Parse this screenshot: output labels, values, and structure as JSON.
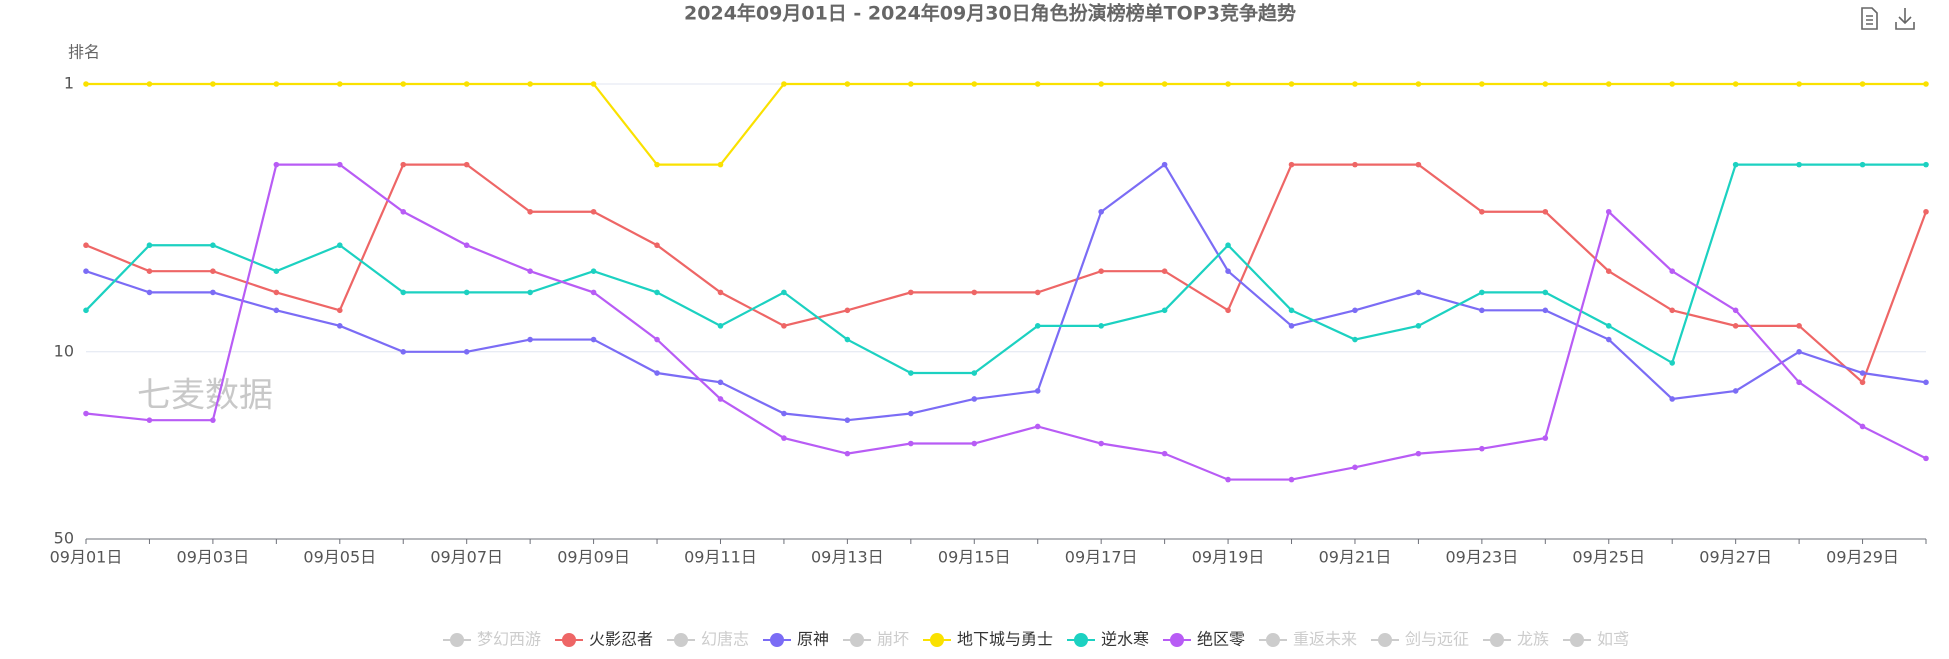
{
  "chart_data": {
    "type": "line",
    "title": "2024年09月01日 - 2024年09月30日角色扮演榜榜单TOP3竞争趋势",
    "y_axis_label": "排名",
    "watermark": "七麦数据",
    "categories": [
      "09月01日",
      null,
      "09月03日",
      null,
      "09月05日",
      null,
      "09月07日",
      null,
      "09月09日",
      null,
      "09月11日",
      null,
      "09月13日",
      null,
      "09月15日",
      null,
      "09月17日",
      null,
      "09月19日",
      null,
      "09月21日",
      null,
      "09月23日",
      null,
      "09月25日",
      null,
      "09月27日",
      null,
      "09月29日",
      null
    ],
    "ylim": [
      1,
      50
    ],
    "yticks": [
      1,
      10,
      50
    ],
    "log_scale": true,
    "y_inverted": true,
    "grid": true,
    "legend_position": "bottom",
    "series": [
      {
        "name": "梦幻西游",
        "color": "#cccccc",
        "visible": false
      },
      {
        "name": "火影忍者",
        "color": "#ee6666",
        "visible": true,
        "values": [
          4,
          5,
          5,
          6,
          7,
          2,
          2,
          3,
          3,
          4,
          6,
          8,
          7,
          6,
          6,
          6,
          5,
          5,
          7,
          2,
          2,
          2,
          3,
          3,
          5,
          7,
          8,
          8,
          13,
          3
        ]
      },
      {
        "name": "幻唐志",
        "color": "#cccccc",
        "visible": false
      },
      {
        "name": "原神",
        "color": "#7b6cf5",
        "visible": true,
        "values": [
          5,
          6,
          6,
          7,
          8,
          10,
          10,
          9,
          9,
          12,
          13,
          17,
          18,
          17,
          15,
          14,
          3,
          2,
          5,
          8,
          7,
          6,
          7,
          7,
          9,
          15,
          14,
          10,
          12,
          13
        ]
      },
      {
        "name": "崩坏",
        "color": "#cccccc",
        "visible": false
      },
      {
        "name": "地下城与勇士",
        "color": "#fae100",
        "visible": true,
        "values": [
          1,
          1,
          1,
          1,
          1,
          1,
          1,
          1,
          1,
          2,
          2,
          1,
          1,
          1,
          1,
          1,
          1,
          1,
          1,
          1,
          1,
          1,
          1,
          1,
          1,
          1,
          1,
          1,
          1,
          1
        ]
      },
      {
        "name": "逆水寒",
        "color": "#1cd1c1",
        "visible": true,
        "values": [
          7,
          4,
          4,
          5,
          4,
          6,
          6,
          6,
          5,
          6,
          8,
          6,
          9,
          12,
          12,
          8,
          8,
          7,
          4,
          7,
          9,
          8,
          6,
          6,
          8,
          11,
          2,
          2,
          2,
          2
        ]
      },
      {
        "name": "绝区零",
        "color": "#b85cf5",
        "visible": true,
        "values": [
          17,
          18,
          18,
          2,
          2,
          3,
          4,
          5,
          6,
          9,
          15,
          21,
          24,
          22,
          22,
          19,
          22,
          24,
          30,
          30,
          27,
          24,
          23,
          21,
          3,
          5,
          7,
          13,
          19,
          25
        ]
      },
      {
        "name": "重返未来",
        "color": "#cccccc",
        "visible": false
      },
      {
        "name": "剑与远征",
        "color": "#cccccc",
        "visible": false
      },
      {
        "name": "龙族",
        "color": "#cccccc",
        "visible": false
      },
      {
        "name": "如鸢",
        "color": "#cccccc",
        "visible": false
      }
    ]
  }
}
